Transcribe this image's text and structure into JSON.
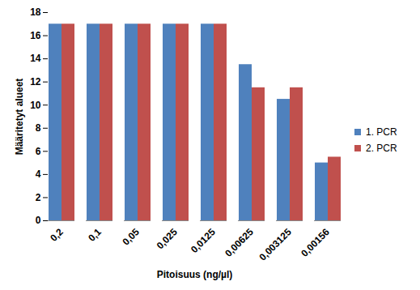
{
  "chart_data": {
    "type": "bar",
    "x_label": "Pitoisuus (ng/µl)",
    "y_label": "Määritetyt alueet",
    "categories": [
      "0,2",
      "0,1",
      "0,05",
      "0,025",
      "0,0125",
      "0,00625",
      "0,003125",
      "0,00156"
    ],
    "series": [
      {
        "name": "1. PCR",
        "color": "#4F81BD",
        "values": [
          17,
          17,
          17,
          17,
          17,
          13.5,
          10.5,
          5
        ]
      },
      {
        "name": "2. PCR",
        "color": "#C0504D",
        "values": [
          17,
          17,
          17,
          17,
          17,
          11.5,
          11.5,
          5.5
        ]
      }
    ],
    "ylim": [
      0,
      18
    ],
    "yticks": [
      0,
      2,
      4,
      6,
      8,
      10,
      12,
      14,
      16,
      18
    ],
    "grid": false,
    "legend": "right"
  }
}
